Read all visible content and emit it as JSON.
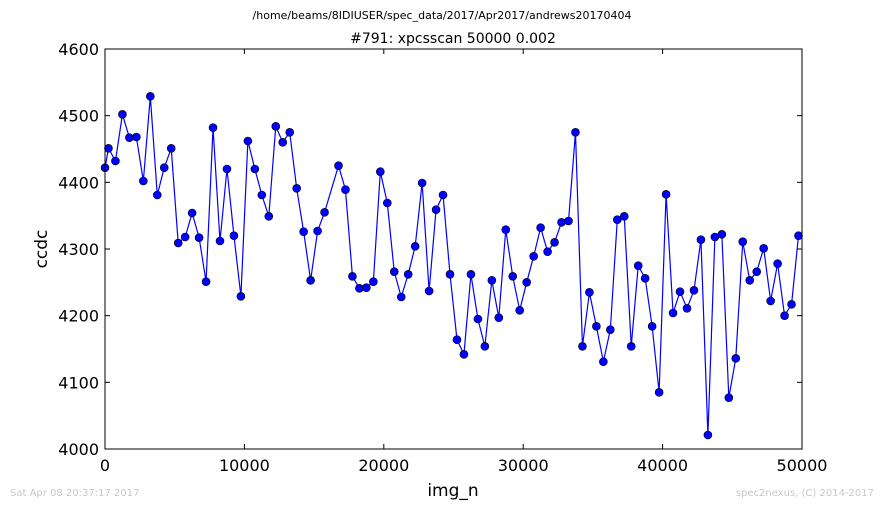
{
  "suptitle": "/home/beams/8IDIUSER/spec_data/2017/Apr2017/andrews20170404",
  "footer": {
    "timestamp": "Sat Apr 08 20:37:17 2017",
    "credit": "spec2nexus, (C) 2014-2017"
  },
  "colors": {
    "series": "#0000ff",
    "marker_edge": "#000000",
    "axes": "#000000",
    "footer": "#c8c8c8"
  },
  "chart_data": {
    "type": "line",
    "title": "#791: xpcsscan 50000 0.002",
    "xlabel": "img_n",
    "ylabel": "ccdc",
    "xlim": [
      0,
      50000
    ],
    "ylim": [
      4000,
      4600
    ],
    "xticks": [
      0,
      10000,
      20000,
      30000,
      40000,
      50000
    ],
    "yticks": [
      4000,
      4100,
      4200,
      4300,
      4400,
      4500,
      4600
    ],
    "grid": false,
    "legend": "none",
    "marker": "circle",
    "x": [
      0,
      250,
      750,
      1250,
      1750,
      2250,
      2750,
      3250,
      3750,
      4250,
      4750,
      5250,
      5750,
      6250,
      6750,
      7250,
      7750,
      8250,
      8750,
      9250,
      9750,
      10250,
      10750,
      11250,
      11750,
      12250,
      12750,
      13250,
      13750,
      14250,
      14750,
      15250,
      15750,
      16750,
      17250,
      17750,
      18250,
      18750,
      19250,
      19750,
      20250,
      20750,
      21250,
      21750,
      22250,
      22750,
      23250,
      23750,
      24250,
      24750,
      25250,
      25750,
      26250,
      26750,
      27250,
      27750,
      28250,
      28750,
      29250,
      29750,
      30250,
      30750,
      31250,
      31750,
      32250,
      32750,
      33250,
      33750,
      34250,
      34750,
      35250,
      35750,
      36250,
      36750,
      37250,
      37750,
      38250,
      38750,
      39250,
      39750,
      40250,
      40750,
      41250,
      41750,
      42250,
      42750,
      43250,
      43750,
      44250,
      44750,
      45250,
      45750,
      46250,
      46750,
      47250,
      47750,
      48250,
      48750,
      49250,
      49750
    ],
    "y": [
      4422,
      4451,
      4432,
      4502,
      4467,
      4468,
      4402,
      4529,
      4381,
      4422,
      4451,
      4309,
      4318,
      4354,
      4317,
      4251,
      4482,
      4312,
      4420,
      4320,
      4229,
      4462,
      4420,
      4381,
      4349,
      4484,
      4460,
      4475,
      4391,
      4326,
      4253,
      4327,
      4355,
      4425,
      4389,
      4259,
      4241,
      4242,
      4251,
      4416,
      4369,
      4266,
      4228,
      4262,
      4304,
      4399,
      4237,
      4359,
      4381,
      4262,
      4164,
      4142,
      4262,
      4195,
      4154,
      4253,
      4197,
      4329,
      4259,
      4208,
      4250,
      4289,
      4332,
      4296,
      4310,
      4340,
      4342,
      4475,
      4154,
      4235,
      4184,
      4131,
      4179,
      4344,
      4349,
      4154,
      4275,
      4256,
      4184,
      4085,
      4382,
      4204,
      4236,
      4211,
      4238,
      4314,
      4021,
      4318,
      4322,
      4077,
      4136,
      4311,
      4253,
      4266,
      4301,
      4222,
      4278,
      4200,
      4217,
      4320
    ]
  }
}
